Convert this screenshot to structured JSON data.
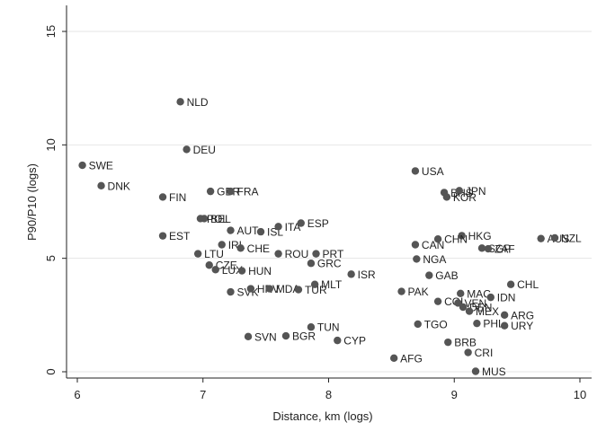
{
  "chart_data": {
    "type": "scatter",
    "xlabel": "Distance, km (logs)",
    "ylabel": "P90/P10 (logs)",
    "xlim": [
      6,
      10
    ],
    "ylim": [
      0,
      15
    ],
    "xticks": [
      "6",
      "7",
      "8",
      "9",
      "10"
    ],
    "yticks": [
      "0",
      "5",
      "10",
      "15"
    ],
    "grid": "horizontal",
    "marker_color": "#555555",
    "background": "#ffffff",
    "points": [
      {
        "label": "NLD",
        "x": 6.82,
        "y": 11.9
      },
      {
        "label": "DEU",
        "x": 6.87,
        "y": 9.8
      },
      {
        "label": "SWE",
        "x": 6.04,
        "y": 9.1
      },
      {
        "label": "DNK",
        "x": 6.19,
        "y": 8.2
      },
      {
        "label": "FIN",
        "x": 6.68,
        "y": 7.7
      },
      {
        "label": "GBR",
        "x": 7.06,
        "y": 7.95
      },
      {
        "label": "FRA",
        "x": 7.22,
        "y": 7.95
      },
      {
        "label": "BEL",
        "x": 7.01,
        "y": 6.75
      },
      {
        "label": "POL",
        "x": 6.98,
        "y": 6.75
      },
      {
        "label": "EST",
        "x": 6.68,
        "y": 5.99
      },
      {
        "label": "AUT",
        "x": 7.22,
        "y": 6.23
      },
      {
        "label": "ISL",
        "x": 7.46,
        "y": 6.17
      },
      {
        "label": "ITA",
        "x": 7.6,
        "y": 6.4
      },
      {
        "label": "ESP",
        "x": 7.78,
        "y": 6.55
      },
      {
        "label": "IRL",
        "x": 7.15,
        "y": 5.6
      },
      {
        "label": "CHE",
        "x": 7.3,
        "y": 5.45
      },
      {
        "label": "LTU",
        "x": 6.96,
        "y": 5.2
      },
      {
        "label": "ROU",
        "x": 7.6,
        "y": 5.2
      },
      {
        "label": "PRT",
        "x": 7.9,
        "y": 5.2
      },
      {
        "label": "CZE",
        "x": 7.05,
        "y": 4.7
      },
      {
        "label": "LUX",
        "x": 7.1,
        "y": 4.5
      },
      {
        "label": "HUN",
        "x": 7.31,
        "y": 4.45
      },
      {
        "label": "GRC",
        "x": 7.86,
        "y": 4.78
      },
      {
        "label": "ISR",
        "x": 8.18,
        "y": 4.3
      },
      {
        "label": "SVK",
        "x": 7.22,
        "y": 3.52
      },
      {
        "label": "HRV",
        "x": 7.38,
        "y": 3.66
      },
      {
        "label": "MDA",
        "x": 7.53,
        "y": 3.66
      },
      {
        "label": "TUR",
        "x": 7.76,
        "y": 3.62
      },
      {
        "label": "MLT",
        "x": 7.89,
        "y": 3.85
      },
      {
        "label": "TUN",
        "x": 7.86,
        "y": 1.97
      },
      {
        "label": "SVN",
        "x": 7.36,
        "y": 1.55
      },
      {
        "label": "BGR",
        "x": 7.66,
        "y": 1.58
      },
      {
        "label": "CYP",
        "x": 8.07,
        "y": 1.38
      },
      {
        "label": "USA",
        "x": 8.69,
        "y": 8.85
      },
      {
        "label": "BHS",
        "x": 8.92,
        "y": 7.9
      },
      {
        "label": "JPN",
        "x": 9.04,
        "y": 7.98
      },
      {
        "label": "KOR",
        "x": 8.94,
        "y": 7.7
      },
      {
        "label": "HKG",
        "x": 9.06,
        "y": 6.0
      },
      {
        "label": "CAN",
        "x": 8.69,
        "y": 5.6
      },
      {
        "label": "CHN",
        "x": 8.87,
        "y": 5.85
      },
      {
        "label": "SGP",
        "x": 9.22,
        "y": 5.45
      },
      {
        "label": "ZAF",
        "x": 9.27,
        "y": 5.42
      },
      {
        "label": "AUS",
        "x": 9.69,
        "y": 5.87
      },
      {
        "label": "NZL",
        "x": 9.8,
        "y": 5.9
      },
      {
        "label": "NGA",
        "x": 8.7,
        "y": 4.97
      },
      {
        "label": "GAB",
        "x": 8.8,
        "y": 4.25
      },
      {
        "label": "PAK",
        "x": 8.58,
        "y": 3.54
      },
      {
        "label": "CHL",
        "x": 9.45,
        "y": 3.85
      },
      {
        "label": "MAC",
        "x": 9.05,
        "y": 3.45
      },
      {
        "label": "IDN",
        "x": 9.29,
        "y": 3.28
      },
      {
        "label": "COL",
        "x": 8.87,
        "y": 3.1
      },
      {
        "label": "VEN",
        "x": 9.03,
        "y": 3.03
      },
      {
        "label": "DEN",
        "x": 9.07,
        "y": 2.85
      },
      {
        "label": "MEX",
        "x": 9.12,
        "y": 2.67
      },
      {
        "label": "ARG",
        "x": 9.4,
        "y": 2.5
      },
      {
        "label": "TGO",
        "x": 8.71,
        "y": 2.1
      },
      {
        "label": "PHL",
        "x": 9.18,
        "y": 2.13
      },
      {
        "label": "URY",
        "x": 9.4,
        "y": 2.03
      },
      {
        "label": "BRB",
        "x": 8.95,
        "y": 1.3
      },
      {
        "label": "CRI",
        "x": 9.11,
        "y": 0.85
      },
      {
        "label": "AFG",
        "x": 8.52,
        "y": 0.6
      },
      {
        "label": "MUS",
        "x": 9.17,
        "y": 0.02
      }
    ]
  }
}
